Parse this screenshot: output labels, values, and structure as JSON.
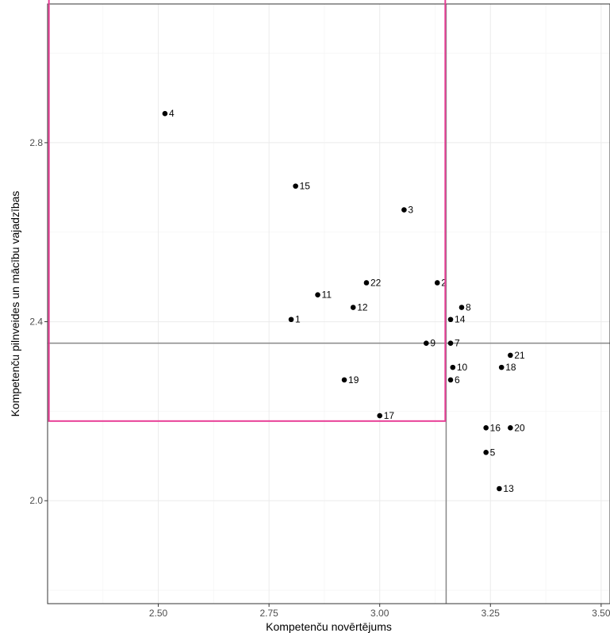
{
  "chart_data": {
    "type": "scatter",
    "title": "",
    "xlabel": "Kompetenču novērtējums",
    "ylabel": "Kompetenču pilnveides un mācību vajadzības",
    "xlim": [
      2.25,
      3.52
    ],
    "ylim": [
      1.77,
      3.11
    ],
    "x_ticks": [
      2.5,
      2.75,
      3.0,
      3.25,
      3.5
    ],
    "x_tick_labels": [
      "2.50",
      "2.75",
      "3.00",
      "3.25",
      "3.50"
    ],
    "y_ticks": [
      2.0,
      2.4,
      2.8
    ],
    "y_tick_labels": [
      "2.0",
      "2.4",
      "2.8"
    ],
    "grid": true,
    "reference_lines": {
      "x": 3.15,
      "y": 2.352,
      "color": "#888888"
    },
    "highlight_box": {
      "x_range": [
        2.253,
        3.148
      ],
      "y_range": [
        2.178,
        3.123
      ],
      "color": "#e83e96"
    },
    "points": [
      {
        "label": "1",
        "x": 2.8,
        "y": 2.405
      },
      {
        "label": "2",
        "x": 3.13,
        "y": 2.487
      },
      {
        "label": "3",
        "x": 3.055,
        "y": 2.65
      },
      {
        "label": "4",
        "x": 2.515,
        "y": 2.865
      },
      {
        "label": "5",
        "x": 3.24,
        "y": 2.108
      },
      {
        "label": "6",
        "x": 3.16,
        "y": 2.27
      },
      {
        "label": "7",
        "x": 3.16,
        "y": 2.352
      },
      {
        "label": "8",
        "x": 3.185,
        "y": 2.432
      },
      {
        "label": "9",
        "x": 3.105,
        "y": 2.352
      },
      {
        "label": "10",
        "x": 3.165,
        "y": 2.298
      },
      {
        "label": "11",
        "x": 2.86,
        "y": 2.46
      },
      {
        "label": "12",
        "x": 2.94,
        "y": 2.432
      },
      {
        "label": "13",
        "x": 3.27,
        "y": 2.027
      },
      {
        "label": "14",
        "x": 3.16,
        "y": 2.405
      },
      {
        "label": "15",
        "x": 2.81,
        "y": 2.703
      },
      {
        "label": "16",
        "x": 3.24,
        "y": 2.163
      },
      {
        "label": "17",
        "x": 3.0,
        "y": 2.19
      },
      {
        "label": "18",
        "x": 3.275,
        "y": 2.298
      },
      {
        "label": "19",
        "x": 2.92,
        "y": 2.27
      },
      {
        "label": "20",
        "x": 3.295,
        "y": 2.163
      },
      {
        "label": "21",
        "x": 3.295,
        "y": 2.325
      },
      {
        "label": "22",
        "x": 2.97,
        "y": 2.487
      }
    ]
  }
}
